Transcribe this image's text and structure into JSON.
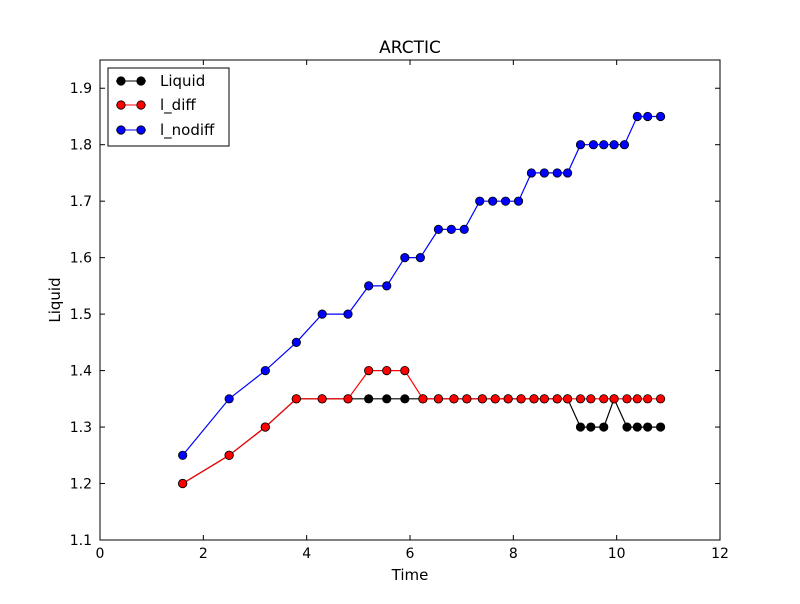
{
  "chart_data": {
    "type": "line",
    "title": "ARCTIC",
    "xlabel": "Time",
    "ylabel": "Liquid",
    "xlim": [
      0,
      12
    ],
    "ylim": [
      1.1,
      1.95
    ],
    "xticks": [
      0,
      2,
      4,
      6,
      8,
      10,
      12
    ],
    "yticks": [
      1.1,
      1.2,
      1.3,
      1.4,
      1.5,
      1.6,
      1.7,
      1.8,
      1.9
    ],
    "grid": false,
    "legend_position": "top-left",
    "series": [
      {
        "name": "Liquid",
        "color": "#000000",
        "x": [
          1.6,
          2.5,
          3.2,
          3.8,
          4.3,
          4.8,
          5.2,
          5.55,
          5.9,
          6.25,
          6.55,
          6.85,
          7.1,
          7.4,
          7.65,
          7.9,
          8.15,
          8.4,
          8.6,
          8.85,
          9.05,
          9.3,
          9.5,
          9.75,
          9.95,
          10.2,
          10.4,
          10.6,
          10.85
        ],
        "y": [
          1.2,
          1.25,
          1.3,
          1.35,
          1.35,
          1.35,
          1.35,
          1.35,
          1.35,
          1.35,
          1.35,
          1.35,
          1.35,
          1.35,
          1.35,
          1.35,
          1.35,
          1.35,
          1.35,
          1.35,
          1.35,
          1.3,
          1.3,
          1.3,
          1.35,
          1.3,
          1.3,
          1.3,
          1.3
        ]
      },
      {
        "name": "l_diff",
        "color": "#ff0000",
        "x": [
          1.6,
          2.5,
          3.2,
          3.8,
          4.3,
          4.8,
          5.2,
          5.55,
          5.9,
          6.25,
          6.55,
          6.85,
          7.1,
          7.4,
          7.65,
          7.9,
          8.15,
          8.4,
          8.6,
          8.85,
          9.05,
          9.3,
          9.5,
          9.75,
          9.95,
          10.2,
          10.4,
          10.6,
          10.85
        ],
        "y": [
          1.2,
          1.25,
          1.3,
          1.35,
          1.35,
          1.35,
          1.4,
          1.4,
          1.4,
          1.35,
          1.35,
          1.35,
          1.35,
          1.35,
          1.35,
          1.35,
          1.35,
          1.35,
          1.35,
          1.35,
          1.35,
          1.35,
          1.35,
          1.35,
          1.35,
          1.35,
          1.35,
          1.35,
          1.35
        ]
      },
      {
        "name": "l_nodiff",
        "color": "#0000ff",
        "x": [
          1.6,
          2.5,
          3.2,
          3.8,
          4.3,
          4.8,
          5.2,
          5.55,
          5.9,
          6.2,
          6.55,
          6.8,
          7.05,
          7.35,
          7.6,
          7.85,
          8.1,
          8.35,
          8.6,
          8.85,
          9.05,
          9.3,
          9.55,
          9.75,
          9.95,
          10.15,
          10.4,
          10.6,
          10.85
        ],
        "y": [
          1.25,
          1.35,
          1.4,
          1.45,
          1.5,
          1.5,
          1.55,
          1.55,
          1.6,
          1.6,
          1.65,
          1.65,
          1.65,
          1.7,
          1.7,
          1.7,
          1.7,
          1.75,
          1.75,
          1.75,
          1.75,
          1.8,
          1.8,
          1.8,
          1.8,
          1.8,
          1.85,
          1.85,
          1.85
        ]
      }
    ]
  }
}
